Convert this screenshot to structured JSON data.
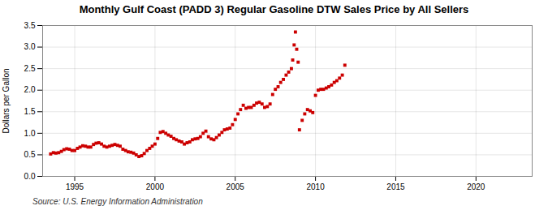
{
  "chart_data": {
    "type": "scatter",
    "title": "Monthly Gulf Coast (PADD 3) Regular Gasoline DTW Sales Price by All Sellers",
    "ylabel": "Dollars per Gallon",
    "source": "Source: U.S. Energy Information Administration",
    "color": "#cc0000",
    "marker": "square",
    "grid": true,
    "xlim": [
      1993.0,
      2023.5
    ],
    "ylim": [
      0.0,
      3.5
    ],
    "xticks": [
      1995,
      2000,
      2005,
      2010,
      2015,
      2020
    ],
    "yticks": [
      {
        "value": 0.0,
        "label": "0.0"
      },
      0.5,
      {
        "value": 1.0,
        "label": "1.0"
      },
      1.5,
      {
        "value": 2.0,
        "label": "2.0"
      },
      2.5,
      {
        "value": 3.0,
        "label": "3.0"
      },
      3.5
    ],
    "x": [
      1993.5,
      1993.67,
      1993.83,
      1994.0,
      1994.17,
      1994.33,
      1994.5,
      1994.67,
      1994.83,
      1995.0,
      1995.17,
      1995.33,
      1995.5,
      1995.67,
      1995.83,
      1996.0,
      1996.17,
      1996.33,
      1996.5,
      1996.67,
      1996.83,
      1997.0,
      1997.17,
      1997.33,
      1997.5,
      1997.67,
      1997.83,
      1998.0,
      1998.17,
      1998.33,
      1998.5,
      1998.67,
      1998.83,
      1999.0,
      1999.17,
      1999.33,
      1999.5,
      1999.67,
      1999.83,
      2000.0,
      2000.17,
      2000.33,
      2000.5,
      2000.67,
      2000.83,
      2001.0,
      2001.17,
      2001.33,
      2001.5,
      2001.67,
      2001.83,
      2002.0,
      2002.17,
      2002.33,
      2002.5,
      2002.67,
      2002.83,
      2003.0,
      2003.17,
      2003.33,
      2003.5,
      2003.67,
      2003.83,
      2004.0,
      2004.17,
      2004.33,
      2004.5,
      2004.67,
      2004.83,
      2005.0,
      2005.17,
      2005.33,
      2005.5,
      2005.67,
      2005.83,
      2006.0,
      2006.17,
      2006.33,
      2006.5,
      2006.67,
      2006.83,
      2007.0,
      2007.17,
      2007.33,
      2007.5,
      2007.67,
      2007.83,
      2008.0,
      2008.17,
      2008.33,
      2008.5,
      2008.58,
      2008.67,
      2008.75,
      2008.83,
      2008.92,
      2009.0,
      2009.17,
      2009.33,
      2009.5,
      2009.67,
      2009.83,
      2010.0,
      2010.17,
      2010.33,
      2010.5,
      2010.67,
      2010.83,
      2011.0,
      2011.17,
      2011.33,
      2011.5,
      2011.67,
      2011.83
    ],
    "values": [
      0.52,
      0.55,
      0.54,
      0.55,
      0.58,
      0.62,
      0.64,
      0.63,
      0.6,
      0.6,
      0.65,
      0.68,
      0.71,
      0.7,
      0.68,
      0.68,
      0.74,
      0.77,
      0.78,
      0.75,
      0.7,
      0.68,
      0.7,
      0.72,
      0.74,
      0.72,
      0.7,
      0.63,
      0.6,
      0.57,
      0.56,
      0.54,
      0.5,
      0.46,
      0.48,
      0.53,
      0.6,
      0.65,
      0.7,
      0.75,
      0.88,
      1.02,
      1.04,
      1.0,
      0.96,
      0.93,
      0.88,
      0.85,
      0.82,
      0.8,
      0.75,
      0.78,
      0.8,
      0.85,
      0.87,
      0.88,
      0.92,
      1.0,
      1.05,
      0.92,
      0.87,
      0.85,
      0.9,
      0.96,
      1.02,
      1.08,
      1.1,
      1.12,
      1.2,
      1.32,
      1.45,
      1.55,
      1.65,
      1.58,
      1.6,
      1.6,
      1.65,
      1.7,
      1.72,
      1.68,
      1.6,
      1.62,
      1.68,
      1.9,
      2.02,
      2.08,
      2.18,
      2.25,
      2.35,
      2.42,
      2.5,
      2.7,
      3.05,
      3.35,
      2.95,
      2.65,
      1.08,
      1.3,
      1.45,
      1.55,
      1.52,
      1.48,
      1.88,
      2.0,
      2.02,
      2.02,
      2.05,
      2.08,
      2.12,
      2.18,
      2.22,
      2.28,
      2.35,
      2.58
    ]
  }
}
